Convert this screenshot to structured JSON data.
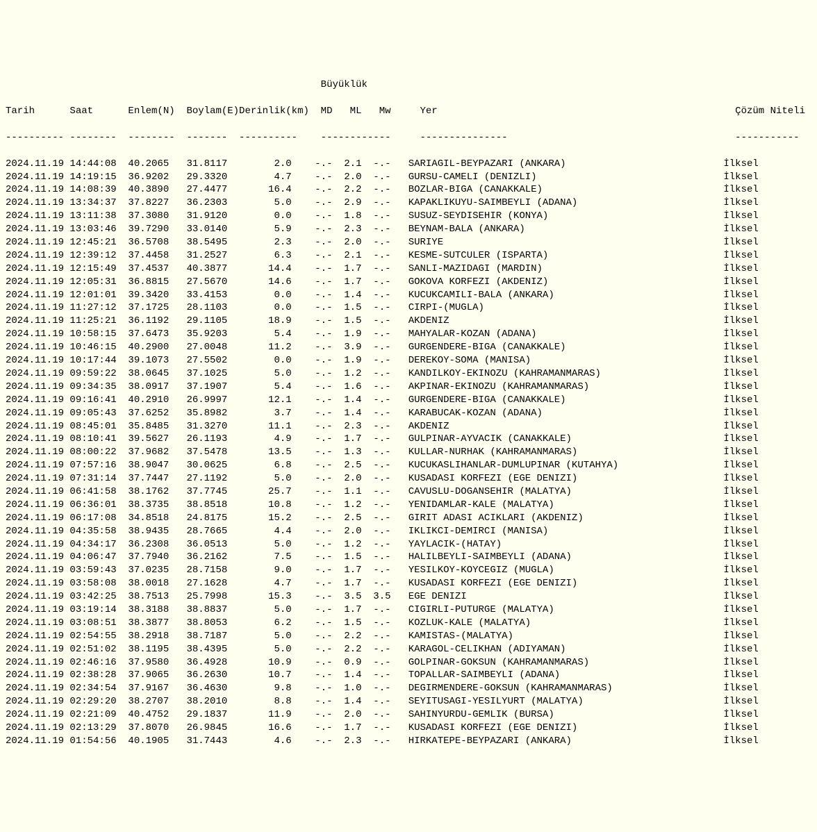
{
  "background_color": "#fffff0",
  "text_color": "#000000",
  "font_family": "Courier New",
  "font_size_pt": 10.5,
  "superheader_label": "Büyüklük",
  "columns": [
    {
      "key": "tarih",
      "label": "Tarih",
      "width": 11,
      "align": "left"
    },
    {
      "key": "saat",
      "label": "Saat",
      "width": 9,
      "align": "left"
    },
    {
      "key": "enlem",
      "label": "Enlem(N)",
      "width": 8,
      "align": "right"
    },
    {
      "key": "boylam",
      "label": "Boylam(E)",
      "width": 8,
      "align": "right"
    },
    {
      "key": "derinlik",
      "label": "Derinlik(km)",
      "width": 12,
      "align": "right"
    },
    {
      "key": "md",
      "label": "MD",
      "width": 4,
      "align": "right"
    },
    {
      "key": "ml",
      "label": "ML",
      "width": 4,
      "align": "right"
    },
    {
      "key": "mw",
      "label": "Mw",
      "width": 4,
      "align": "right"
    },
    {
      "key": "yer",
      "label": "Yer",
      "width": 50,
      "align": "left"
    },
    {
      "key": "coz",
      "label": "Çözüm Niteli",
      "width": 12,
      "align": "left"
    }
  ],
  "header_separators": {
    "tarih": "----------",
    "saat": "--------",
    "enlem": "--------",
    "boylam": "-------",
    "derinlik": "----------",
    "buyukluk": "------------",
    "yer": "---------------",
    "coz": "-----------"
  },
  "rows": [
    {
      "tarih": "2024.11.19",
      "saat": "14:44:08",
      "enlem": "40.2065",
      "boylam": "31.8117",
      "derinlik": "2.0",
      "md": "-.-",
      "ml": "2.1",
      "mw": "-.-",
      "yer": "SARIAGIL-BEYPAZARI (ANKARA)",
      "coz": "İlksel"
    },
    {
      "tarih": "2024.11.19",
      "saat": "14:19:15",
      "enlem": "36.9202",
      "boylam": "29.3320",
      "derinlik": "4.7",
      "md": "-.-",
      "ml": "2.0",
      "mw": "-.-",
      "yer": "GURSU-CAMELI (DENIZLI)",
      "coz": "İlksel"
    },
    {
      "tarih": "2024.11.19",
      "saat": "14:08:39",
      "enlem": "40.3890",
      "boylam": "27.4477",
      "derinlik": "16.4",
      "md": "-.-",
      "ml": "2.2",
      "mw": "-.-",
      "yer": "BOZLAR-BIGA (CANAKKALE)",
      "coz": "İlksel"
    },
    {
      "tarih": "2024.11.19",
      "saat": "13:34:37",
      "enlem": "37.8227",
      "boylam": "36.2303",
      "derinlik": "5.0",
      "md": "-.-",
      "ml": "2.9",
      "mw": "-.-",
      "yer": "KAPAKLIKUYU-SAIMBEYLI (ADANA)",
      "coz": "İlksel"
    },
    {
      "tarih": "2024.11.19",
      "saat": "13:11:38",
      "enlem": "37.3080",
      "boylam": "31.9120",
      "derinlik": "0.0",
      "md": "-.-",
      "ml": "1.8",
      "mw": "-.-",
      "yer": "SUSUZ-SEYDISEHIR (KONYA)",
      "coz": "İlksel"
    },
    {
      "tarih": "2024.11.19",
      "saat": "13:03:46",
      "enlem": "39.7290",
      "boylam": "33.0140",
      "derinlik": "5.9",
      "md": "-.-",
      "ml": "2.3",
      "mw": "-.-",
      "yer": "BEYNAM-BALA (ANKARA)",
      "coz": "İlksel"
    },
    {
      "tarih": "2024.11.19",
      "saat": "12:45:21",
      "enlem": "36.5708",
      "boylam": "38.5495",
      "derinlik": "2.3",
      "md": "-.-",
      "ml": "2.0",
      "mw": "-.-",
      "yer": "SURIYE",
      "coz": "İlksel"
    },
    {
      "tarih": "2024.11.19",
      "saat": "12:39:12",
      "enlem": "37.4458",
      "boylam": "31.2527",
      "derinlik": "6.3",
      "md": "-.-",
      "ml": "2.1",
      "mw": "-.-",
      "yer": "KESME-SUTCULER (ISPARTA)",
      "coz": "İlksel"
    },
    {
      "tarih": "2024.11.19",
      "saat": "12:15:49",
      "enlem": "37.4537",
      "boylam": "40.3877",
      "derinlik": "14.4",
      "md": "-.-",
      "ml": "1.7",
      "mw": "-.-",
      "yer": "SANLI-MAZIDAGI (MARDIN)",
      "coz": "İlksel"
    },
    {
      "tarih": "2024.11.19",
      "saat": "12:05:31",
      "enlem": "36.8815",
      "boylam": "27.5670",
      "derinlik": "14.6",
      "md": "-.-",
      "ml": "1.7",
      "mw": "-.-",
      "yer": "GOKOVA KORFEZI (AKDENIZ)",
      "coz": "İlksel"
    },
    {
      "tarih": "2024.11.19",
      "saat": "12:01:01",
      "enlem": "39.3420",
      "boylam": "33.4153",
      "derinlik": "0.0",
      "md": "-.-",
      "ml": "1.4",
      "mw": "-.-",
      "yer": "KUCUKCAMILI-BALA (ANKARA)",
      "coz": "İlksel"
    },
    {
      "tarih": "2024.11.19",
      "saat": "11:27:12",
      "enlem": "37.1725",
      "boylam": "28.1103",
      "derinlik": "0.0",
      "md": "-.-",
      "ml": "1.5",
      "mw": "-.-",
      "yer": "CIRPI-(MUGLA)",
      "coz": "İlksel"
    },
    {
      "tarih": "2024.11.19",
      "saat": "11:25:21",
      "enlem": "36.1192",
      "boylam": "29.1105",
      "derinlik": "18.9",
      "md": "-.-",
      "ml": "1.5",
      "mw": "-.-",
      "yer": "AKDENIZ",
      "coz": "İlksel"
    },
    {
      "tarih": "2024.11.19",
      "saat": "10:58:15",
      "enlem": "37.6473",
      "boylam": "35.9203",
      "derinlik": "5.4",
      "md": "-.-",
      "ml": "1.9",
      "mw": "-.-",
      "yer": "MAHYALAR-KOZAN (ADANA)",
      "coz": "İlksel"
    },
    {
      "tarih": "2024.11.19",
      "saat": "10:46:15",
      "enlem": "40.2900",
      "boylam": "27.0048",
      "derinlik": "11.2",
      "md": "-.-",
      "ml": "3.9",
      "mw": "-.-",
      "yer": "GURGENDERE-BIGA (CANAKKALE)",
      "coz": "İlksel"
    },
    {
      "tarih": "2024.11.19",
      "saat": "10:17:44",
      "enlem": "39.1073",
      "boylam": "27.5502",
      "derinlik": "0.0",
      "md": "-.-",
      "ml": "1.9",
      "mw": "-.-",
      "yer": "DEREKOY-SOMA (MANISA)",
      "coz": "İlksel"
    },
    {
      "tarih": "2024.11.19",
      "saat": "09:59:22",
      "enlem": "38.0645",
      "boylam": "37.1025",
      "derinlik": "5.0",
      "md": "-.-",
      "ml": "1.2",
      "mw": "-.-",
      "yer": "KANDILKOY-EKINOZU (KAHRAMANMARAS)",
      "coz": "İlksel"
    },
    {
      "tarih": "2024.11.19",
      "saat": "09:34:35",
      "enlem": "38.0917",
      "boylam": "37.1907",
      "derinlik": "5.4",
      "md": "-.-",
      "ml": "1.6",
      "mw": "-.-",
      "yer": "AKPINAR-EKINOZU (KAHRAMANMARAS)",
      "coz": "İlksel"
    },
    {
      "tarih": "2024.11.19",
      "saat": "09:16:41",
      "enlem": "40.2910",
      "boylam": "26.9997",
      "derinlik": "12.1",
      "md": "-.-",
      "ml": "1.4",
      "mw": "-.-",
      "yer": "GURGENDERE-BIGA (CANAKKALE)",
      "coz": "İlksel"
    },
    {
      "tarih": "2024.11.19",
      "saat": "09:05:43",
      "enlem": "37.6252",
      "boylam": "35.8982",
      "derinlik": "3.7",
      "md": "-.-",
      "ml": "1.4",
      "mw": "-.-",
      "yer": "KARABUCAK-KOZAN (ADANA)",
      "coz": "İlksel"
    },
    {
      "tarih": "2024.11.19",
      "saat": "08:45:01",
      "enlem": "35.8485",
      "boylam": "31.3270",
      "derinlik": "11.1",
      "md": "-.-",
      "ml": "2.3",
      "mw": "-.-",
      "yer": "AKDENIZ",
      "coz": "İlksel"
    },
    {
      "tarih": "2024.11.19",
      "saat": "08:10:41",
      "enlem": "39.5627",
      "boylam": "26.1193",
      "derinlik": "4.9",
      "md": "-.-",
      "ml": "1.7",
      "mw": "-.-",
      "yer": "GULPINAR-AYVACIK (CANAKKALE)",
      "coz": "İlksel"
    },
    {
      "tarih": "2024.11.19",
      "saat": "08:00:22",
      "enlem": "37.9682",
      "boylam": "37.5478",
      "derinlik": "13.5",
      "md": "-.-",
      "ml": "1.3",
      "mw": "-.-",
      "yer": "KULLAR-NURHAK (KAHRAMANMARAS)",
      "coz": "İlksel"
    },
    {
      "tarih": "2024.11.19",
      "saat": "07:57:16",
      "enlem": "38.9047",
      "boylam": "30.0625",
      "derinlik": "6.8",
      "md": "-.-",
      "ml": "2.5",
      "mw": "-.-",
      "yer": "KUCUKASLIHANLAR-DUMLUPINAR (KUTAHYA)",
      "coz": "İlksel"
    },
    {
      "tarih": "2024.11.19",
      "saat": "07:31:14",
      "enlem": "37.7447",
      "boylam": "27.1192",
      "derinlik": "5.0",
      "md": "-.-",
      "ml": "2.0",
      "mw": "-.-",
      "yer": "KUSADASI KORFEZI (EGE DENIZI)",
      "coz": "İlksel"
    },
    {
      "tarih": "2024.11.19",
      "saat": "06:41:58",
      "enlem": "38.1762",
      "boylam": "37.7745",
      "derinlik": "25.7",
      "md": "-.-",
      "ml": "1.1",
      "mw": "-.-",
      "yer": "CAVUSLU-DOGANSEHIR (MALATYA)",
      "coz": "İlksel"
    },
    {
      "tarih": "2024.11.19",
      "saat": "06:36:01",
      "enlem": "38.3735",
      "boylam": "38.8518",
      "derinlik": "10.8",
      "md": "-.-",
      "ml": "1.2",
      "mw": "-.-",
      "yer": "YENIDAMLAR-KALE (MALATYA)",
      "coz": "İlksel"
    },
    {
      "tarih": "2024.11.19",
      "saat": "06:17:08",
      "enlem": "34.8518",
      "boylam": "24.8175",
      "derinlik": "15.2",
      "md": "-.-",
      "ml": "2.5",
      "mw": "-.-",
      "yer": "GIRIT ADASI ACIKLARI (AKDENIZ)",
      "coz": "İlksel"
    },
    {
      "tarih": "2024.11.19",
      "saat": "04:35:58",
      "enlem": "38.9435",
      "boylam": "28.7665",
      "derinlik": "4.4",
      "md": "-.-",
      "ml": "2.0",
      "mw": "-.-",
      "yer": "IKLIKCI-DEMIRCI (MANISA)",
      "coz": "İlksel"
    },
    {
      "tarih": "2024.11.19",
      "saat": "04:34:17",
      "enlem": "36.2308",
      "boylam": "36.0513",
      "derinlik": "5.0",
      "md": "-.-",
      "ml": "1.2",
      "mw": "-.-",
      "yer": "YAYLACIK-(HATAY)",
      "coz": "İlksel"
    },
    {
      "tarih": "2024.11.19",
      "saat": "04:06:47",
      "enlem": "37.7940",
      "boylam": "36.2162",
      "derinlik": "7.5",
      "md": "-.-",
      "ml": "1.5",
      "mw": "-.-",
      "yer": "HALILBEYLI-SAIMBEYLI (ADANA)",
      "coz": "İlksel"
    },
    {
      "tarih": "2024.11.19",
      "saat": "03:59:43",
      "enlem": "37.0235",
      "boylam": "28.7158",
      "derinlik": "9.0",
      "md": "-.-",
      "ml": "1.7",
      "mw": "-.-",
      "yer": "YESILKOY-KOYCEGIZ (MUGLA)",
      "coz": "İlksel"
    },
    {
      "tarih": "2024.11.19",
      "saat": "03:58:08",
      "enlem": "38.0018",
      "boylam": "27.1628",
      "derinlik": "4.7",
      "md": "-.-",
      "ml": "1.7",
      "mw": "-.-",
      "yer": "KUSADASI KORFEZI (EGE DENIZI)",
      "coz": "İlksel"
    },
    {
      "tarih": "2024.11.19",
      "saat": "03:42:25",
      "enlem": "38.7513",
      "boylam": "25.7998",
      "derinlik": "15.3",
      "md": "-.-",
      "ml": "3.5",
      "mw": "3.5",
      "yer": "EGE DENIZI",
      "coz": "İlksel"
    },
    {
      "tarih": "2024.11.19",
      "saat": "03:19:14",
      "enlem": "38.3188",
      "boylam": "38.8837",
      "derinlik": "5.0",
      "md": "-.-",
      "ml": "1.7",
      "mw": "-.-",
      "yer": "CIGIRLI-PUTURGE (MALATYA)",
      "coz": "İlksel"
    },
    {
      "tarih": "2024.11.19",
      "saat": "03:08:51",
      "enlem": "38.3877",
      "boylam": "38.8053",
      "derinlik": "6.2",
      "md": "-.-",
      "ml": "1.5",
      "mw": "-.-",
      "yer": "KOZLUK-KALE (MALATYA)",
      "coz": "İlksel"
    },
    {
      "tarih": "2024.11.19",
      "saat": "02:54:55",
      "enlem": "38.2918",
      "boylam": "38.7187",
      "derinlik": "5.0",
      "md": "-.-",
      "ml": "2.2",
      "mw": "-.-",
      "yer": "KAMISTAS-(MALATYA)",
      "coz": "İlksel"
    },
    {
      "tarih": "2024.11.19",
      "saat": "02:51:02",
      "enlem": "38.1195",
      "boylam": "38.4395",
      "derinlik": "5.0",
      "md": "-.-",
      "ml": "2.2",
      "mw": "-.-",
      "yer": "KARAGOL-CELIKHAN (ADIYAMAN)",
      "coz": "İlksel"
    },
    {
      "tarih": "2024.11.19",
      "saat": "02:46:16",
      "enlem": "37.9580",
      "boylam": "36.4928",
      "derinlik": "10.9",
      "md": "-.-",
      "ml": "0.9",
      "mw": "-.-",
      "yer": "GOLPINAR-GOKSUN (KAHRAMANMARAS)",
      "coz": "İlksel"
    },
    {
      "tarih": "2024.11.19",
      "saat": "02:38:28",
      "enlem": "37.9065",
      "boylam": "36.2630",
      "derinlik": "10.7",
      "md": "-.-",
      "ml": "1.4",
      "mw": "-.-",
      "yer": "TOPALLAR-SAIMBEYLI (ADANA)",
      "coz": "İlksel"
    },
    {
      "tarih": "2024.11.19",
      "saat": "02:34:54",
      "enlem": "37.9167",
      "boylam": "36.4630",
      "derinlik": "9.8",
      "md": "-.-",
      "ml": "1.0",
      "mw": "-.-",
      "yer": "DEGIRMENDERE-GOKSUN (KAHRAMANMARAS)",
      "coz": "İlksel"
    },
    {
      "tarih": "2024.11.19",
      "saat": "02:29:20",
      "enlem": "38.2707",
      "boylam": "38.2010",
      "derinlik": "8.8",
      "md": "-.-",
      "ml": "1.4",
      "mw": "-.-",
      "yer": "SEYITUSAGI-YESILYURT (MALATYA)",
      "coz": "İlksel"
    },
    {
      "tarih": "2024.11.19",
      "saat": "02:21:09",
      "enlem": "40.4752",
      "boylam": "29.1837",
      "derinlik": "11.9",
      "md": "-.-",
      "ml": "2.0",
      "mw": "-.-",
      "yer": "SAHINYURDU-GEMLIK (BURSA)",
      "coz": "İlksel"
    },
    {
      "tarih": "2024.11.19",
      "saat": "02:13:29",
      "enlem": "37.8070",
      "boylam": "26.9845",
      "derinlik": "16.6",
      "md": "-.-",
      "ml": "1.7",
      "mw": "-.-",
      "yer": "KUSADASI KORFEZI (EGE DENIZI)",
      "coz": "İlksel"
    },
    {
      "tarih": "2024.11.19",
      "saat": "01:54:56",
      "enlem": "40.1905",
      "boylam": "31.7443",
      "derinlik": "4.6",
      "md": "-.-",
      "ml": "2.3",
      "mw": "-.-",
      "yer": "HIRKATEPE-BEYPAZARI (ANKARA)",
      "coz": "İlksel"
    }
  ]
}
